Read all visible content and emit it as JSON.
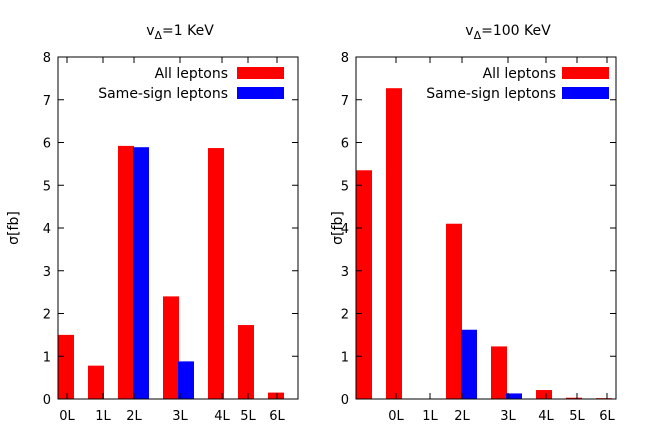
{
  "chart_data": [
    {
      "type": "bar",
      "title_prefix": "v",
      "title_sub": "Δ",
      "title_suffix": "=1 KeV",
      "ylabel": "σ[fb]",
      "xlabel": "",
      "ylim": [
        0,
        8
      ],
      "yticks": [
        "0",
        "1",
        "2",
        "3",
        "4",
        "5",
        "6",
        "7",
        "8"
      ],
      "legend_position": "top-right",
      "legend": [
        {
          "name": "All leptons",
          "color": "#ff0000"
        },
        {
          "name": "Same-sign leptons",
          "color": "#0000ff"
        }
      ],
      "categories": [
        "0L",
        "1L",
        "2L",
        "3L",
        "4L",
        "5L",
        "6L"
      ],
      "series": [
        {
          "name": "All leptons",
          "color": "#ff0000",
          "values": [
            1.5,
            0.78,
            5.92,
            2.4,
            5.87,
            1.73,
            0.15
          ]
        },
        {
          "name": "Same-sign leptons",
          "color": "#0000ff",
          "values": [
            null,
            null,
            5.89,
            0.88,
            null,
            null,
            null
          ]
        }
      ]
    },
    {
      "type": "bar",
      "title_prefix": "v",
      "title_sub": "Δ",
      "title_suffix": "=100 KeV",
      "ylabel": "σ[fb]",
      "xlabel": "",
      "ylim": [
        0,
        8
      ],
      "yticks": [
        "0",
        "1",
        "2",
        "3",
        "4",
        "5",
        "6",
        "7",
        "8"
      ],
      "legend_position": "top-right",
      "legend": [
        {
          "name": "All leptons",
          "color": "#ff0000"
        },
        {
          "name": "Same-sign leptons",
          "color": "#0000ff"
        }
      ],
      "categories": [
        "0L",
        "1L",
        "2L",
        "3L",
        "4L",
        "5L",
        "6L"
      ],
      "series": [
        {
          "name": "All leptons",
          "color": "#ff0000",
          "values": [
            5.35,
            7.27,
            4.1,
            1.23,
            0.21,
            0.03,
            0.02
          ]
        },
        {
          "name": "Same-sign leptons",
          "color": "#0000ff",
          "values": [
            null,
            null,
            1.62,
            0.13,
            null,
            null,
            null
          ]
        }
      ]
    }
  ]
}
